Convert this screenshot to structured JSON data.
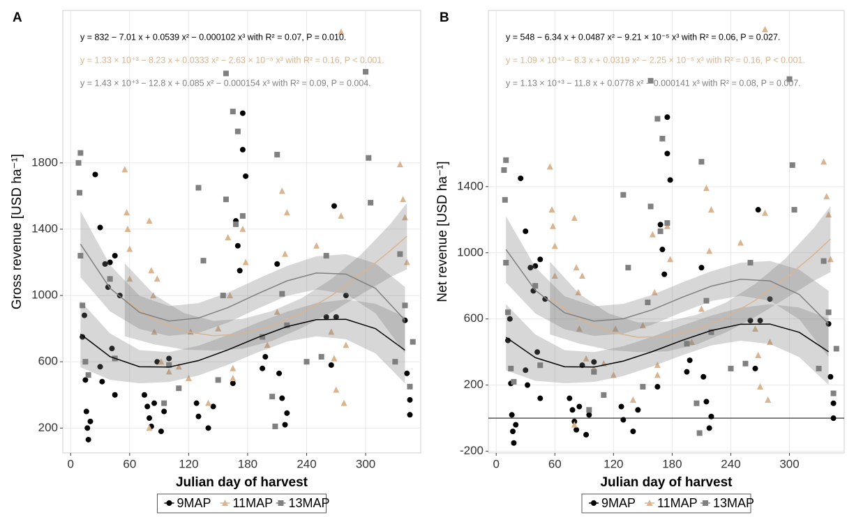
{
  "chart_data": [
    {
      "type": "scatter",
      "panel": "A",
      "xlabel": "Julian day of harvest",
      "ylabel": "Gross revenue [USD ha⁻¹]",
      "xlim": [
        -8,
        356
      ],
      "ylim": [
        50,
        2720
      ],
      "xticks": [
        0,
        60,
        120,
        180,
        240,
        300
      ],
      "yticks": [
        200,
        600,
        1000,
        1400,
        1800
      ],
      "grid": true,
      "legend": "bottom",
      "series": [
        {
          "name": "9MAP",
          "color": "#000000",
          "marker": "circle",
          "equation": "y = 832 − 7.01 x + 0.0539 x² − 0.000102 x³ with R² = 0.07, P = 0.010.",
          "x": [
            12,
            14,
            15,
            16,
            17,
            18,
            20,
            25,
            30,
            30,
            32,
            35,
            38,
            40,
            42,
            45,
            45,
            50,
            75,
            78,
            80,
            82,
            85,
            88,
            92,
            95,
            100,
            128,
            130,
            140,
            145,
            165,
            168,
            170,
            172,
            175,
            175,
            178,
            195,
            198,
            210,
            212,
            215,
            218,
            220,
            260,
            265,
            268,
            270,
            280,
            340,
            342,
            345,
            345
          ],
          "values": [
            750,
            880,
            490,
            300,
            200,
            130,
            240,
            1730,
            1410,
            570,
            480,
            1190,
            1050,
            1200,
            680,
            1240,
            400,
            1000,
            400,
            330,
            260,
            210,
            350,
            600,
            180,
            300,
            620,
            350,
            270,
            200,
            330,
            470,
            1450,
            1300,
            1150,
            2100,
            1880,
            1720,
            560,
            630,
            1190,
            530,
            380,
            220,
            290,
            870,
            580,
            1540,
            870,
            1000,
            850,
            530,
            280,
            370
          ],
          "fit_x": [
            10,
            40,
            70,
            100,
            130,
            160,
            190,
            220,
            250,
            280,
            310,
            340
          ],
          "fit": [
            767,
            631,
            570,
            568,
            607,
            672,
            746,
            812,
            854,
            856,
            800,
            670
          ],
          "fit_lower": [
            567,
            491,
            470,
            478,
            517,
            582,
            656,
            722,
            754,
            736,
            650,
            470
          ],
          "fit_upper": [
            967,
            771,
            670,
            658,
            697,
            762,
            836,
            902,
            954,
            976,
            950,
            870
          ]
        },
        {
          "name": "11MAP",
          "color": "#d9b48f",
          "marker": "triangle",
          "equation": "y = 1.33 × 10⁺³ − 8.23 x + 0.0333 x² − 2.63 × 10⁻⁵ x³ with R² = 0.16, P < 0.001.",
          "x": [
            55,
            57,
            58,
            60,
            60,
            80,
            80,
            82,
            84,
            85,
            88,
            92,
            100,
            110,
            120,
            122,
            140,
            150,
            160,
            162,
            165,
            165,
            175,
            178,
            200,
            210,
            215,
            218,
            220,
            250,
            265,
            268,
            270,
            275,
            275,
            278,
            280,
            335,
            338,
            340,
            342
          ],
          "values": [
            1760,
            1500,
            1400,
            1280,
            1100,
            1450,
            200,
            1150,
            1000,
            780,
            1100,
            600,
            540,
            570,
            500,
            780,
            350,
            800,
            1350,
            1000,
            500,
            560,
            1400,
            1200,
            700,
            900,
            1630,
            1250,
            1500,
            1300,
            780,
            620,
            430,
            2590,
            1480,
            350,
            700,
            1790,
            1580,
            1470,
            1200
          ],
          "fit_x": [
            55,
            85,
            115,
            145,
            175,
            205,
            235,
            265,
            295,
            325,
            342
          ],
          "fit": [
            974,
            855,
            784,
            757,
            769,
            816,
            894,
            998,
            1125,
            1270,
            1358
          ],
          "fit_lower": [
            754,
            705,
            674,
            667,
            679,
            726,
            804,
            898,
            1005,
            1110,
            1158
          ],
          "fit_upper": [
            1194,
            1005,
            894,
            847,
            859,
            906,
            984,
            1098,
            1245,
            1430,
            1558
          ]
        },
        {
          "name": "13MAP",
          "color": "#808080",
          "marker": "square",
          "equation": "y = 1.43 × 10⁺³ − 12.8 x + 0.085 x² − 0.000154 x³ with R² = 0.09, P = 0.004.",
          "x": [
            8,
            9,
            10,
            10,
            12,
            15,
            18,
            40,
            45,
            95,
            100,
            110,
            130,
            135,
            150,
            155,
            158,
            158,
            165,
            168,
            170,
            175,
            195,
            205,
            208,
            210,
            215,
            220,
            240,
            255,
            260,
            300,
            303,
            305,
            330,
            335,
            340,
            345,
            348
          ],
          "values": [
            1800,
            1620,
            1860,
            1240,
            940,
            600,
            520,
            1100,
            620,
            350,
            580,
            440,
            1650,
            1210,
            490,
            1000,
            1580,
            2340,
            2110,
            1430,
            1990,
            1480,
            750,
            390,
            210,
            1850,
            1010,
            820,
            600,
            630,
            1240,
            2350,
            1830,
            1560,
            600,
            1250,
            940,
            450,
            720
          ],
          "fit_x": [
            10,
            40,
            70,
            100,
            130,
            160,
            190,
            220,
            250,
            280,
            310,
            340
          ],
          "fit": [
            1310,
            1044,
            898,
            846,
            864,
            927,
            1010,
            1088,
            1136,
            1129,
            1043,
            851
          ],
          "fit_lower": [
            1110,
            904,
            798,
            756,
            774,
            837,
            920,
            998,
            1036,
            1009,
            893,
            651
          ],
          "fit_upper": [
            1510,
            1184,
            998,
            936,
            954,
            1017,
            1100,
            1178,
            1236,
            1249,
            1193,
            1051
          ]
        }
      ]
    },
    {
      "type": "scatter",
      "panel": "B",
      "xlabel": "Julian day of harvest",
      "ylabel": "Net revenue [USD ha⁻¹]",
      "xlim": [
        -8,
        356
      ],
      "ylim": [
        -210,
        2465
      ],
      "xticks": [
        0,
        60,
        120,
        180,
        240,
        300
      ],
      "yticks": [
        -200,
        200,
        600,
        1000,
        1400
      ],
      "grid": true,
      "legend": "bottom",
      "hline": 0,
      "series": [
        {
          "name": "9MAP",
          "color": "#000000",
          "marker": "circle",
          "equation": "y = 548 − 6.34 x + 0.0487 x² − 9.21 × 10⁻⁵ x³ with R² = 0.06, P = 0.027.",
          "x": [
            12,
            14,
            15,
            16,
            17,
            18,
            20,
            25,
            30,
            30,
            32,
            35,
            38,
            40,
            42,
            45,
            45,
            50,
            75,
            78,
            80,
            82,
            85,
            88,
            92,
            95,
            100,
            128,
            130,
            140,
            145,
            165,
            168,
            170,
            172,
            175,
            175,
            178,
            195,
            198,
            210,
            212,
            215,
            218,
            220,
            260,
            265,
            268,
            270,
            280,
            340,
            342,
            345,
            345
          ],
          "values": [
            470,
            600,
            210,
            20,
            -80,
            -150,
            -40,
            1450,
            1130,
            290,
            200,
            910,
            770,
            920,
            400,
            960,
            120,
            720,
            120,
            50,
            -20,
            -70,
            70,
            320,
            -100,
            20,
            340,
            70,
            -10,
            -80,
            50,
            190,
            1170,
            1020,
            870,
            1820,
            1600,
            1440,
            280,
            350,
            910,
            250,
            100,
            -60,
            10,
            590,
            300,
            1260,
            590,
            720,
            570,
            250,
            0,
            90
          ],
          "fit_x": [
            10,
            40,
            70,
            100,
            130,
            160,
            190,
            220,
            250,
            280,
            310,
            340
          ],
          "fit": [
            489,
            366,
            311,
            309,
            345,
            403,
            470,
            530,
            568,
            569,
            519,
            402
          ],
          "fit_lower": [
            289,
            226,
            211,
            219,
            255,
            313,
            380,
            440,
            468,
            449,
            369,
            202
          ],
          "fit_upper": [
            689,
            506,
            411,
            399,
            435,
            493,
            560,
            620,
            668,
            689,
            669,
            602
          ]
        },
        {
          "name": "11MAP",
          "color": "#d9b48f",
          "marker": "triangle",
          "equation": "y = 1.09 × 10⁺³ − 8.3 x + 0.0319 x² − 2.25 × 10⁻⁵ x³ with R² = 0.16, P < 0.001.",
          "x": [
            55,
            57,
            58,
            60,
            60,
            80,
            80,
            82,
            84,
            85,
            88,
            92,
            100,
            110,
            120,
            122,
            140,
            150,
            160,
            162,
            165,
            165,
            175,
            178,
            200,
            210,
            215,
            218,
            220,
            250,
            265,
            268,
            270,
            275,
            275,
            278,
            280,
            335,
            338,
            340,
            342
          ],
          "values": [
            1520,
            1260,
            1160,
            1040,
            860,
            1210,
            -40,
            910,
            760,
            540,
            860,
            360,
            300,
            330,
            260,
            540,
            110,
            560,
            1110,
            760,
            260,
            320,
            1160,
            960,
            460,
            660,
            1390,
            1010,
            1260,
            1060,
            540,
            380,
            190,
            2350,
            1240,
            110,
            460,
            1550,
            1340,
            1230,
            960
          ],
          "fit_x": [
            55,
            85,
            115,
            145,
            175,
            205,
            235,
            265,
            295,
            325,
            342
          ],
          "fit": [
            726,
            601,
            523,
            489,
            494,
            535,
            609,
            712,
            840,
            990,
            1083
          ],
          "fit_lower": [
            506,
            451,
            413,
            399,
            404,
            445,
            519,
            612,
            720,
            830,
            883
          ],
          "fit_upper": [
            946,
            751,
            633,
            579,
            584,
            625,
            699,
            812,
            960,
            1150,
            1283
          ]
        },
        {
          "name": "13MAP",
          "color": "#808080",
          "marker": "square",
          "equation": "y = 1.13 × 10⁺³ − 11.8 x + 0.0778 x² − 0.000141 x³ with R² = 0.08, P = 0.007.",
          "x": [
            8,
            9,
            10,
            10,
            12,
            15,
            18,
            40,
            45,
            95,
            100,
            110,
            130,
            135,
            150,
            155,
            158,
            158,
            165,
            168,
            170,
            175,
            195,
            205,
            208,
            210,
            215,
            220,
            240,
            255,
            260,
            300,
            303,
            305,
            330,
            335,
            340,
            345,
            348
          ],
          "values": [
            1500,
            1320,
            1560,
            940,
            640,
            300,
            220,
            800,
            320,
            50,
            280,
            140,
            1350,
            910,
            190,
            700,
            1280,
            2040,
            1810,
            1130,
            1690,
            1180,
            450,
            90,
            -90,
            1550,
            710,
            520,
            300,
            330,
            940,
            2050,
            1530,
            1260,
            300,
            950,
            640,
            150,
            420
          ],
          "fit_x": [
            10,
            40,
            70,
            100,
            130,
            160,
            190,
            220,
            250,
            280,
            310,
            340
          ],
          "fit": [
            1020,
            773,
            637,
            587,
            601,
            656,
            730,
            798,
            840,
            830,
            748,
            570
          ],
          "fit_lower": [
            820,
            633,
            537,
            497,
            511,
            566,
            640,
            708,
            740,
            710,
            598,
            370
          ],
          "fit_upper": [
            1220,
            913,
            737,
            677,
            691,
            746,
            820,
            888,
            940,
            950,
            898,
            770
          ]
        }
      ]
    }
  ]
}
